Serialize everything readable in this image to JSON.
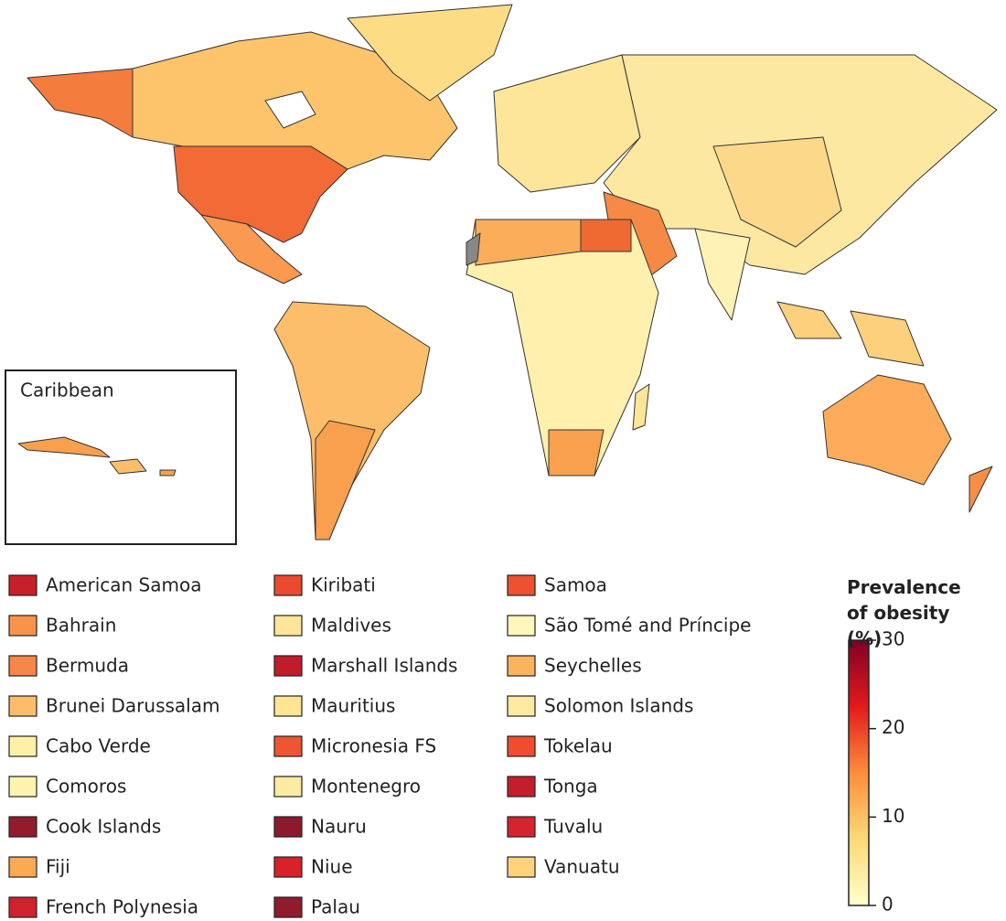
{
  "inset": {
    "title": "Caribbean"
  },
  "legend": {
    "entries": [
      {
        "name": "American Samoa",
        "color": "#c8202a"
      },
      {
        "name": "Bahrain",
        "color": "#f7934a"
      },
      {
        "name": "Bermuda",
        "color": "#f6874a"
      },
      {
        "name": "Brunei Darussalam",
        "color": "#fbbd6a"
      },
      {
        "name": "Cabo Verde",
        "color": "#fff0a8"
      },
      {
        "name": "Comoros",
        "color": "#fff3b0"
      },
      {
        "name": "Cook Islands",
        "color": "#921c2c"
      },
      {
        "name": "Fiji",
        "color": "#faa954"
      },
      {
        "name": "French Polynesia",
        "color": "#d0222c"
      },
      {
        "name": "Kiribati",
        "color": "#ea4a30"
      },
      {
        "name": "Maldives",
        "color": "#fee598"
      },
      {
        "name": "Marshall Islands",
        "color": "#c01c2c"
      },
      {
        "name": "Mauritius",
        "color": "#fee596"
      },
      {
        "name": "Micronesia FS",
        "color": "#ee5534"
      },
      {
        "name": "Montenegro",
        "color": "#feeba2"
      },
      {
        "name": "Nauru",
        "color": "#8c1a2c"
      },
      {
        "name": "Niue",
        "color": "#d62228"
      },
      {
        "name": "Palau",
        "color": "#901b2c"
      },
      {
        "name": "Samoa",
        "color": "#ee5030"
      },
      {
        "name": "São Tomé and Príncipe",
        "color": "#fff6bc"
      },
      {
        "name": "Seychelles",
        "color": "#fbb35e"
      },
      {
        "name": "Solomon Islands",
        "color": "#fee9a0"
      },
      {
        "name": "Tokelau",
        "color": "#f04c30"
      },
      {
        "name": "Tonga",
        "color": "#c41e2c"
      },
      {
        "name": "Tuvalu",
        "color": "#d42430"
      },
      {
        "name": "Vanuatu",
        "color": "#fed27c"
      }
    ]
  },
  "colorbar": {
    "title": "Prevalence of obesity (%)",
    "lim": [
      0,
      30
    ],
    "ticks": [
      0,
      10,
      20,
      30
    ],
    "colors": [
      "#ffffcc",
      "#fed976",
      "#fd8d3c",
      "#e31a1c",
      "#800026"
    ]
  }
}
